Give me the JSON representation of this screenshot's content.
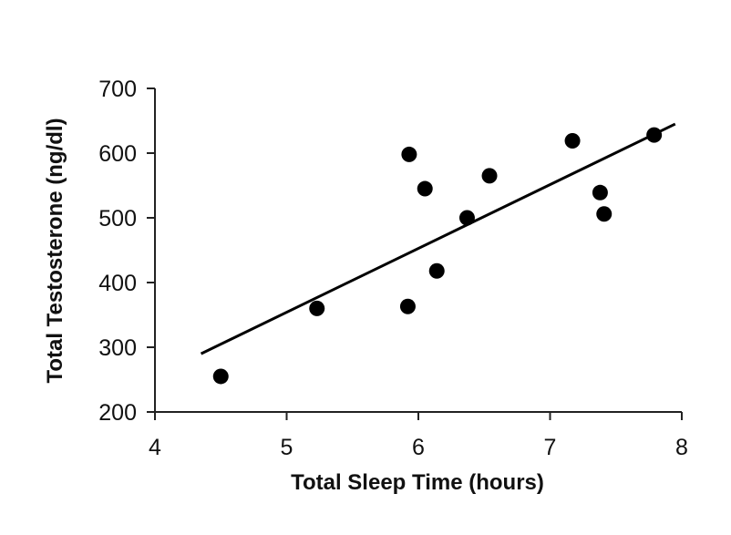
{
  "chart_data": {
    "type": "scatter",
    "title": "",
    "xlabel": "Total Sleep Time (hours)",
    "ylabel": "Total Testosterone (ng/dl)",
    "xlim": [
      4,
      8
    ],
    "ylim": [
      200,
      700
    ],
    "x_ticks": [
      "4",
      "5",
      "6",
      "7",
      "8"
    ],
    "y_ticks": [
      "200",
      "300",
      "400",
      "500",
      "600",
      "700"
    ],
    "grid": false,
    "legend": "none",
    "series": [
      {
        "points": [
          {
            "x": 4.5,
            "y": 255
          },
          {
            "x": 5.23,
            "y": 360
          },
          {
            "x": 5.92,
            "y": 363
          },
          {
            "x": 5.93,
            "y": 598
          },
          {
            "x": 6.05,
            "y": 545
          },
          {
            "x": 6.14,
            "y": 418
          },
          {
            "x": 6.37,
            "y": 500
          },
          {
            "x": 6.54,
            "y": 565
          },
          {
            "x": 7.17,
            "y": 619
          },
          {
            "x": 7.38,
            "y": 539
          },
          {
            "x": 7.41,
            "y": 506
          },
          {
            "x": 7.79,
            "y": 628
          }
        ]
      }
    ],
    "trendline": {
      "x": [
        4.35,
        7.95
      ],
      "y": [
        290,
        645
      ]
    },
    "colors": {
      "marker": "#000000",
      "line": "#000000",
      "axis": "#222222"
    }
  }
}
